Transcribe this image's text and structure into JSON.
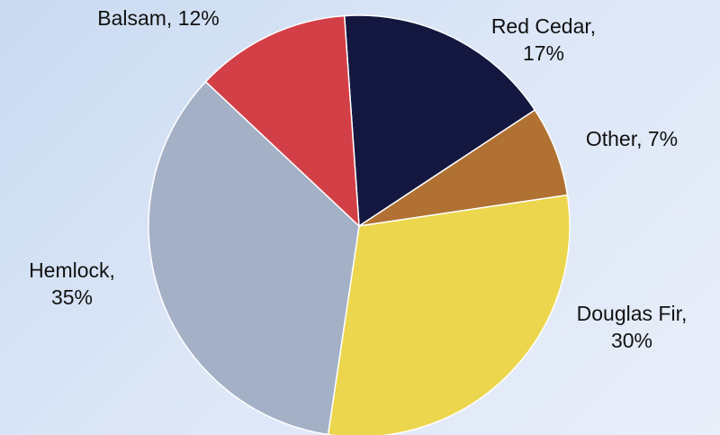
{
  "chart_data": {
    "type": "pie",
    "title": "",
    "slices": [
      {
        "label": "Red Cedar",
        "value": 17,
        "label_lines": [
          "Red Cedar,",
          "17%"
        ],
        "color": "#141840"
      },
      {
        "label": "Other",
        "value": 7,
        "label_lines": [
          "Other, 7%"
        ],
        "color": "#b07133"
      },
      {
        "label": "Douglas Fir",
        "value": 30,
        "label_lines": [
          "Douglas Fir,",
          "30%"
        ],
        "color": "#ecd64d"
      },
      {
        "label": "Hemlock",
        "value": 35,
        "label_lines": [
          "Hemlock,",
          "35%"
        ],
        "color": "#a3b0c6"
      },
      {
        "label": "Balsam",
        "value": 12,
        "label_lines": [
          "Balsam, 12%"
        ],
        "color": "#d33f47"
      }
    ]
  }
}
